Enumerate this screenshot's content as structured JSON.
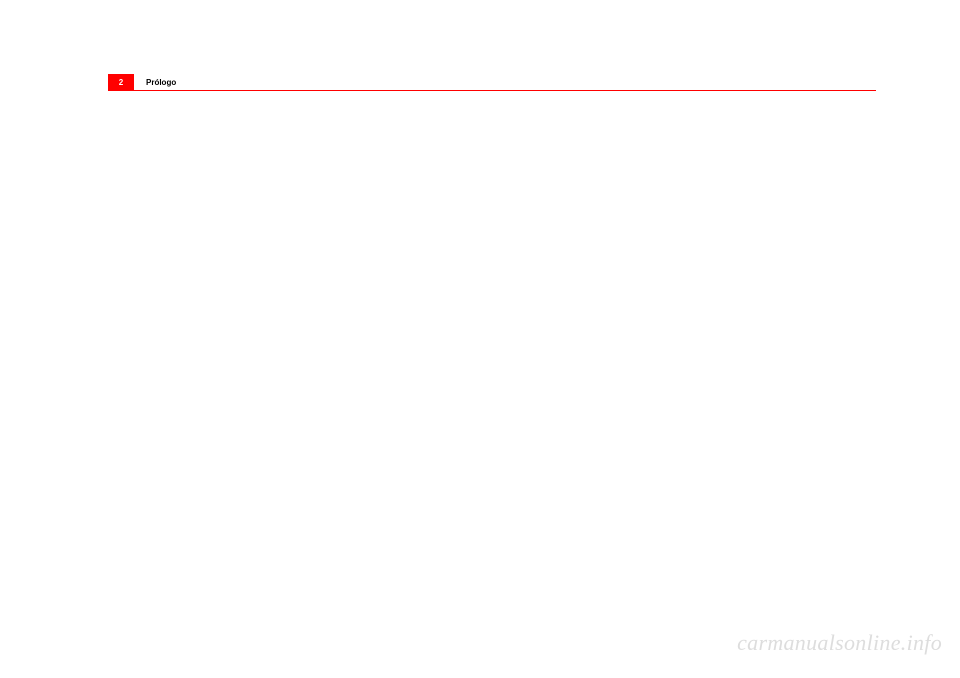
{
  "header": {
    "page_number": "2",
    "section_title": "Prólogo",
    "accent_color": "#ff0000",
    "page_number_text_color": "#ffffff",
    "title_color": "#000000",
    "title_fontsize": 8,
    "page_number_fontsize": 8
  },
  "watermark": {
    "text": "carmanualsonline.info",
    "color": "#dddddd",
    "fontsize": 22
  },
  "background_color": "#ffffff"
}
